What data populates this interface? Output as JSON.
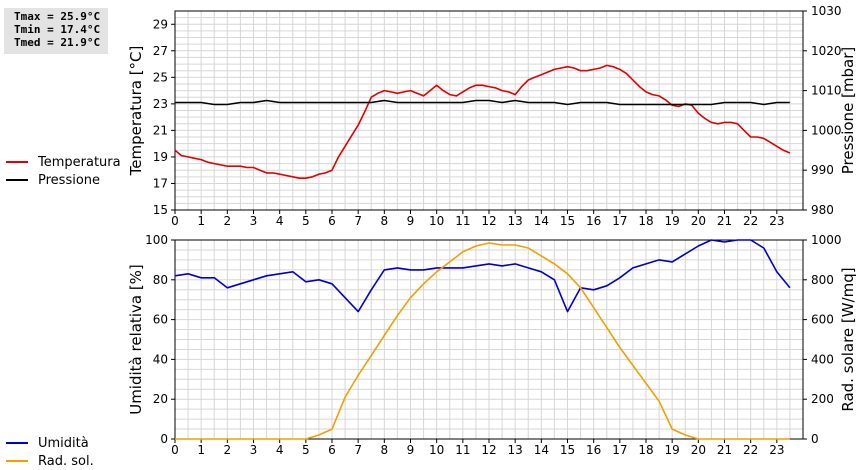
{
  "stats": {
    "tmax": "Tmax = 25.9°C",
    "tmin": "Tmin = 17.4°C",
    "tmed": "Tmed = 21.9°C"
  },
  "legend_top": [
    {
      "label": "Temperatura",
      "color": "#e00000"
    },
    {
      "label": "Pressione",
      "color": "#000000"
    }
  ],
  "legend_bottom": [
    {
      "label": "Umidità",
      "color": "#0000cc"
    },
    {
      "label": "Rad. sol.",
      "color": "#f0a000"
    }
  ],
  "chart_data": [
    {
      "type": "line",
      "ylabel": "Temperatura [°C]",
      "y2label": "Pressione [mbar]",
      "xlim": [
        0,
        24
      ],
      "ylim": [
        15,
        30
      ],
      "y2lim": [
        980,
        1030
      ],
      "xticks": [
        "0",
        "1",
        "2",
        "3",
        "4",
        "5",
        "6",
        "7",
        "8",
        "9",
        "10",
        "11",
        "12",
        "13",
        "14",
        "15",
        "16",
        "17",
        "18",
        "19",
        "20",
        "21",
        "22",
        "23"
      ],
      "yticks": [
        "15",
        "17",
        "19",
        "21",
        "23",
        "25",
        "27",
        "29"
      ],
      "y2ticks": [
        "980",
        "990",
        "1000",
        "1010",
        "1020",
        "1030"
      ],
      "grid": true,
      "series": [
        {
          "name": "Temperatura",
          "axis": "left",
          "color": "#e00000",
          "x": [
            0,
            0.25,
            0.5,
            0.75,
            1,
            1.25,
            1.5,
            1.75,
            2,
            2.25,
            2.5,
            2.75,
            3,
            3.25,
            3.5,
            3.75,
            4,
            4.25,
            4.5,
            4.75,
            5,
            5.25,
            5.5,
            5.75,
            6,
            6.25,
            6.5,
            6.75,
            7,
            7.25,
            7.5,
            7.75,
            8,
            8.25,
            8.5,
            8.75,
            9,
            9.25,
            9.5,
            9.75,
            10,
            10.25,
            10.5,
            10.75,
            11,
            11.25,
            11.5,
            11.75,
            12,
            12.25,
            12.5,
            12.75,
            13,
            13.25,
            13.5,
            13.75,
            14,
            14.25,
            14.5,
            14.75,
            15,
            15.25,
            15.5,
            15.75,
            16,
            16.25,
            16.5,
            16.75,
            17,
            17.25,
            17.5,
            17.75,
            18,
            18.25,
            18.5,
            18.75,
            19,
            19.25,
            19.5,
            19.75,
            20,
            20.25,
            20.5,
            20.75,
            21,
            21.25,
            21.5,
            21.75,
            22,
            22.25,
            22.5,
            22.75,
            23,
            23.25,
            23.5
          ],
          "values": [
            19.5,
            19.1,
            19,
            18.9,
            18.8,
            18.6,
            18.5,
            18.4,
            18.3,
            18.3,
            18.3,
            18.2,
            18.2,
            18,
            17.8,
            17.8,
            17.7,
            17.6,
            17.5,
            17.4,
            17.4,
            17.5,
            17.7,
            17.8,
            18,
            19,
            19.8,
            20.6,
            21.4,
            22.4,
            23.5,
            23.8,
            24,
            23.9,
            23.8,
            23.9,
            24,
            23.8,
            23.6,
            24,
            24.4,
            24,
            23.7,
            23.6,
            23.9,
            24.2,
            24.4,
            24.4,
            24.3,
            24.2,
            24,
            23.9,
            23.7,
            24.3,
            24.8,
            25,
            25.2,
            25.4,
            25.6,
            25.7,
            25.8,
            25.7,
            25.5,
            25.5,
            25.6,
            25.7,
            25.9,
            25.8,
            25.6,
            25.3,
            24.8,
            24.3,
            23.9,
            23.7,
            23.6,
            23.3,
            22.9,
            22.8,
            23,
            22.9,
            22.3,
            21.9,
            21.6,
            21.5,
            21.6,
            21.6,
            21.5,
            21,
            20.5,
            20.5,
            20.4,
            20.1,
            19.8,
            19.5,
            19.3
          ]
        },
        {
          "name": "Pressione",
          "axis": "right",
          "color": "#000000",
          "x": [
            0,
            0.5,
            1,
            1.5,
            2,
            2.5,
            3,
            3.5,
            4,
            4.5,
            5,
            5.5,
            6,
            6.5,
            7,
            7.5,
            8,
            8.5,
            9,
            9.5,
            10,
            10.5,
            11,
            11.5,
            12,
            12.5,
            13,
            13.5,
            14,
            14.5,
            15,
            15.5,
            16,
            16.5,
            17,
            17.5,
            18,
            18.5,
            19,
            19.5,
            20,
            20.5,
            21,
            21.5,
            22,
            22.5,
            23,
            23.5
          ],
          "values": [
            1007,
            1007,
            1007,
            1006.5,
            1006.5,
            1007,
            1007,
            1007.5,
            1007,
            1007,
            1007,
            1007,
            1007,
            1007,
            1007,
            1007,
            1007.5,
            1007,
            1007,
            1007,
            1007,
            1007,
            1007,
            1007.5,
            1007.5,
            1007,
            1007.5,
            1007,
            1007,
            1007,
            1006.5,
            1007,
            1007,
            1007,
            1006.5,
            1006.5,
            1006.5,
            1006.5,
            1006.5,
            1006.5,
            1006.5,
            1006.5,
            1007,
            1007,
            1007,
            1006.5,
            1007,
            1007
          ]
        }
      ]
    },
    {
      "type": "line",
      "ylabel": "Umidità relativa [%]",
      "y2label": "Rad. solare [W/mq]",
      "xlim": [
        0,
        24
      ],
      "ylim": [
        0,
        100
      ],
      "y2lim": [
        0,
        1000
      ],
      "xticks": [
        "0",
        "1",
        "2",
        "3",
        "4",
        "5",
        "6",
        "7",
        "8",
        "9",
        "10",
        "11",
        "12",
        "13",
        "14",
        "15",
        "16",
        "17",
        "18",
        "19",
        "20",
        "21",
        "22",
        "23"
      ],
      "yticks": [
        "0",
        "20",
        "40",
        "60",
        "80",
        "100"
      ],
      "y2ticks": [
        "0",
        "200",
        "400",
        "600",
        "800",
        "1000"
      ],
      "grid": true,
      "series": [
        {
          "name": "Umidità",
          "axis": "left",
          "color": "#0000cc",
          "x": [
            0,
            0.5,
            1,
            1.5,
            2,
            2.5,
            3,
            3.5,
            4,
            4.5,
            5,
            5.5,
            6,
            6.5,
            7,
            7.5,
            8,
            8.5,
            9,
            9.5,
            10,
            10.5,
            11,
            11.5,
            12,
            12.5,
            13,
            13.5,
            14,
            14.5,
            15,
            15.5,
            16,
            16.5,
            17,
            17.5,
            18,
            18.5,
            19,
            19.5,
            20,
            20.5,
            21,
            21.5,
            22,
            22.5,
            23,
            23.5
          ],
          "values": [
            82,
            83,
            81,
            81,
            76,
            78,
            80,
            82,
            83,
            84,
            79,
            80,
            78,
            71,
            64,
            75,
            85,
            86,
            85,
            85,
            86,
            86,
            86,
            87,
            88,
            87,
            88,
            86,
            84,
            80,
            64,
            76,
            75,
            77,
            81,
            86,
            88,
            90,
            89,
            93,
            97,
            100,
            99,
            100,
            100,
            96,
            84,
            76
          ]
        },
        {
          "name": "Rad. sol.",
          "axis": "right",
          "color": "#f0a000",
          "x": [
            0,
            1,
            2,
            3,
            4,
            5,
            5.5,
            6,
            6.5,
            7,
            7.5,
            8,
            8.5,
            9,
            9.5,
            10,
            10.5,
            11,
            11.5,
            12,
            12.5,
            13,
            13.5,
            14,
            14.5,
            15,
            15.5,
            16,
            16.5,
            17,
            17.5,
            18,
            18.5,
            19,
            19.5,
            20,
            20.5,
            21,
            22,
            23,
            23.5
          ],
          "values": [
            0,
            0,
            0,
            0,
            0,
            0,
            20,
            50,
            210,
            320,
            420,
            520,
            620,
            710,
            780,
            840,
            890,
            940,
            970,
            985,
            975,
            975,
            960,
            920,
            880,
            830,
            760,
            660,
            560,
            460,
            370,
            280,
            190,
            50,
            20,
            0,
            0,
            0,
            0,
            0,
            0
          ]
        }
      ]
    }
  ]
}
